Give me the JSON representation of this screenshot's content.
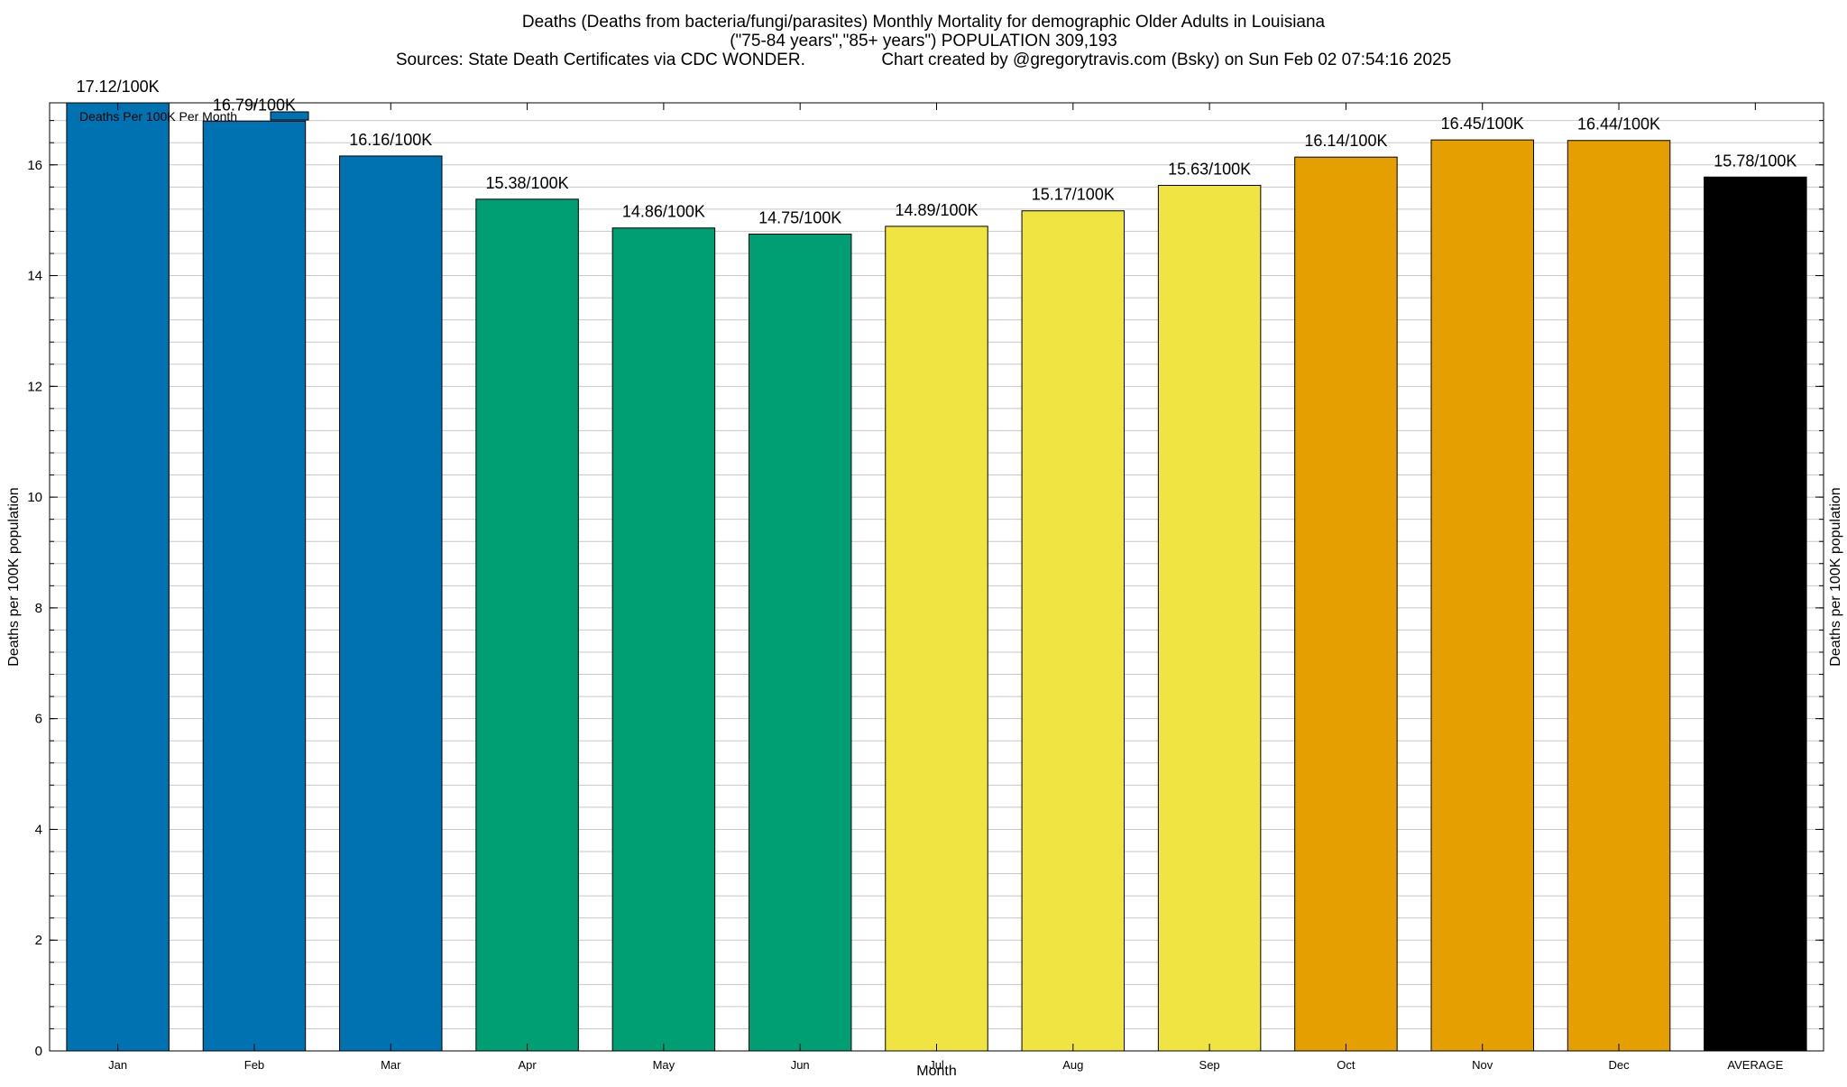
{
  "chart_data": {
    "type": "bar",
    "title_lines": [
      "Deaths (Deaths from bacteria/fungi/parasites) Monthly Mortality for demographic Older Adults in Louisiana",
      "(\"75-84 years\",\"85+ years\") POPULATION 309,193",
      "Sources: State Death Certificates via CDC WONDER.                Chart created by @gregorytravis.com (Bsky) on Sun Feb 02 07:54:16 2025"
    ],
    "xlabel": "Month",
    "ylabel": "Deaths per 100K population",
    "ylabel_right": "Deaths per 100K population",
    "ylim": [
      0,
      17.12
    ],
    "yticks": [
      0,
      2,
      4,
      6,
      8,
      10,
      12,
      14,
      16
    ],
    "categories": [
      "Jan",
      "Feb",
      "Mar",
      "Apr",
      "May",
      "Jun",
      "Jul",
      "Aug",
      "Sep",
      "Oct",
      "Nov",
      "Dec",
      "AVERAGE"
    ],
    "series": [
      {
        "name": "Deaths Per 100K Per Month",
        "values": [
          17.12,
          16.79,
          16.16,
          15.38,
          14.86,
          14.75,
          14.89,
          15.17,
          15.63,
          16.14,
          16.45,
          16.44,
          15.78
        ],
        "labels": [
          "17.12/100K",
          "16.79/100K",
          "16.16/100K",
          "15.38/100K",
          "14.86/100K",
          "14.75/100K",
          "14.89/100K",
          "15.17/100K",
          "15.63/100K",
          "16.14/100K",
          "16.45/100K",
          "16.44/100K",
          "15.78/100K"
        ],
        "colors": [
          "#0072b2",
          "#0072b2",
          "#0072b2",
          "#009e73",
          "#009e73",
          "#009e73",
          "#f0e442",
          "#f0e442",
          "#f0e442",
          "#e69f00",
          "#e69f00",
          "#e69f00",
          "#000000"
        ]
      }
    ],
    "legend": {
      "label": "Deaths Per 100K Per Month",
      "color": "#0072b2",
      "position": "top-left"
    },
    "grid": true,
    "colors": {
      "grid": "#c8c8c8",
      "axis": "#000000",
      "background": "#ffffff"
    }
  }
}
